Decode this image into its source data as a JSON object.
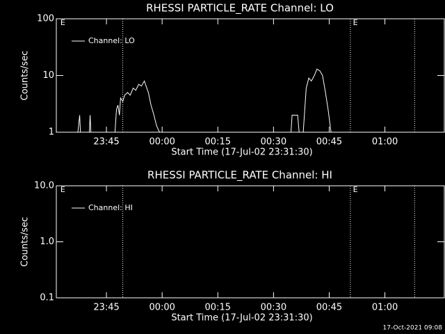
{
  "chart_data": [
    {
      "type": "line",
      "title": "RHESSI PARTICLE_RATE Channel: LO",
      "x_label": "Start Time (17-Jul-02 23:31:30)",
      "y_label": "Counts/sec",
      "log_y": true,
      "legend": "upper left",
      "xlim": [
        1411.5,
        1516
      ],
      "xticks": [
        {
          "value": 1425,
          "label": "23:45"
        },
        {
          "value": 1440,
          "label": "00:00"
        },
        {
          "value": 1455,
          "label": "00:15"
        },
        {
          "value": 1470,
          "label": "00:30"
        },
        {
          "value": 1485,
          "label": "00:45"
        },
        {
          "value": 1500,
          "label": "01:00"
        }
      ],
      "ylim": [
        1,
        100
      ],
      "yticks": [
        1,
        10,
        100
      ],
      "event_lines": [
        1429.4,
        1490.7,
        1508.0
      ],
      "annotations": [
        {
          "text": "E",
          "x": 1412.6
        },
        {
          "text": "E",
          "x": 1491.4
        }
      ],
      "x": [
        1417.3,
        1417.8,
        1418.0,
        1420.4,
        1420.6,
        1420.8,
        1424.0,
        1427.3,
        1427.7,
        1428.1,
        1428.5,
        1428.8,
        1429.4,
        1429.9,
        1430.7,
        1431.4,
        1432.2,
        1432.9,
        1433.7,
        1434.4,
        1435.2,
        1435.5,
        1436.3,
        1437.0,
        1437.8,
        1438.5,
        1439.3,
        1460.0,
        1474.7,
        1475.0,
        1476.5,
        1476.9,
        1478.0,
        1478.8,
        1479.5,
        1480.2,
        1481.0,
        1481.7,
        1482.5,
        1483.2,
        1484.0,
        1484.7,
        1485.5
      ],
      "series": [
        {
          "name": "Channel: LO",
          "color": "#ffffff",
          "values": [
            1,
            2,
            1,
            1,
            2,
            1,
            null,
            1,
            2.5,
            3,
            2,
            4,
            3.5,
            4.5,
            5,
            4.5,
            6,
            5.5,
            7,
            6.5,
            8,
            7,
            5,
            3,
            2,
            1.3,
            1,
            null,
            1,
            2,
            2,
            1,
            1,
            6,
            9,
            8,
            10,
            13,
            12,
            10,
            5,
            2.5,
            1
          ]
        }
      ]
    },
    {
      "type": "line",
      "title": "RHESSI PARTICLE_RATE Channel: HI",
      "x_label": "Start Time (17-Jul-02 23:31:30)",
      "y_label": "Counts/sec",
      "log_y": true,
      "legend": "upper left",
      "xlim": [
        1411.5,
        1516
      ],
      "xticks": [
        {
          "value": 1425,
          "label": "23:45"
        },
        {
          "value": 1440,
          "label": "00:00"
        },
        {
          "value": 1455,
          "label": "00:15"
        },
        {
          "value": 1470,
          "label": "00:30"
        },
        {
          "value": 1485,
          "label": "00:45"
        },
        {
          "value": 1500,
          "label": "01:00"
        }
      ],
      "ylim": [
        0.1,
        10
      ],
      "yticks": [
        {
          "value": 0.1,
          "label": "0.1"
        },
        {
          "value": 1,
          "label": "1.0"
        },
        {
          "value": 10,
          "label": "10.0"
        }
      ],
      "event_lines": [
        1429.4,
        1490.7,
        1508.0
      ],
      "annotations": [
        {
          "text": "E",
          "x": 1412.6
        },
        {
          "text": "E",
          "x": 1491.4
        }
      ],
      "x": [],
      "series": [
        {
          "name": "Channel: HI",
          "color": "#ffffff",
          "values": []
        }
      ]
    }
  ],
  "footer": "17-Oct-2021 09:08"
}
